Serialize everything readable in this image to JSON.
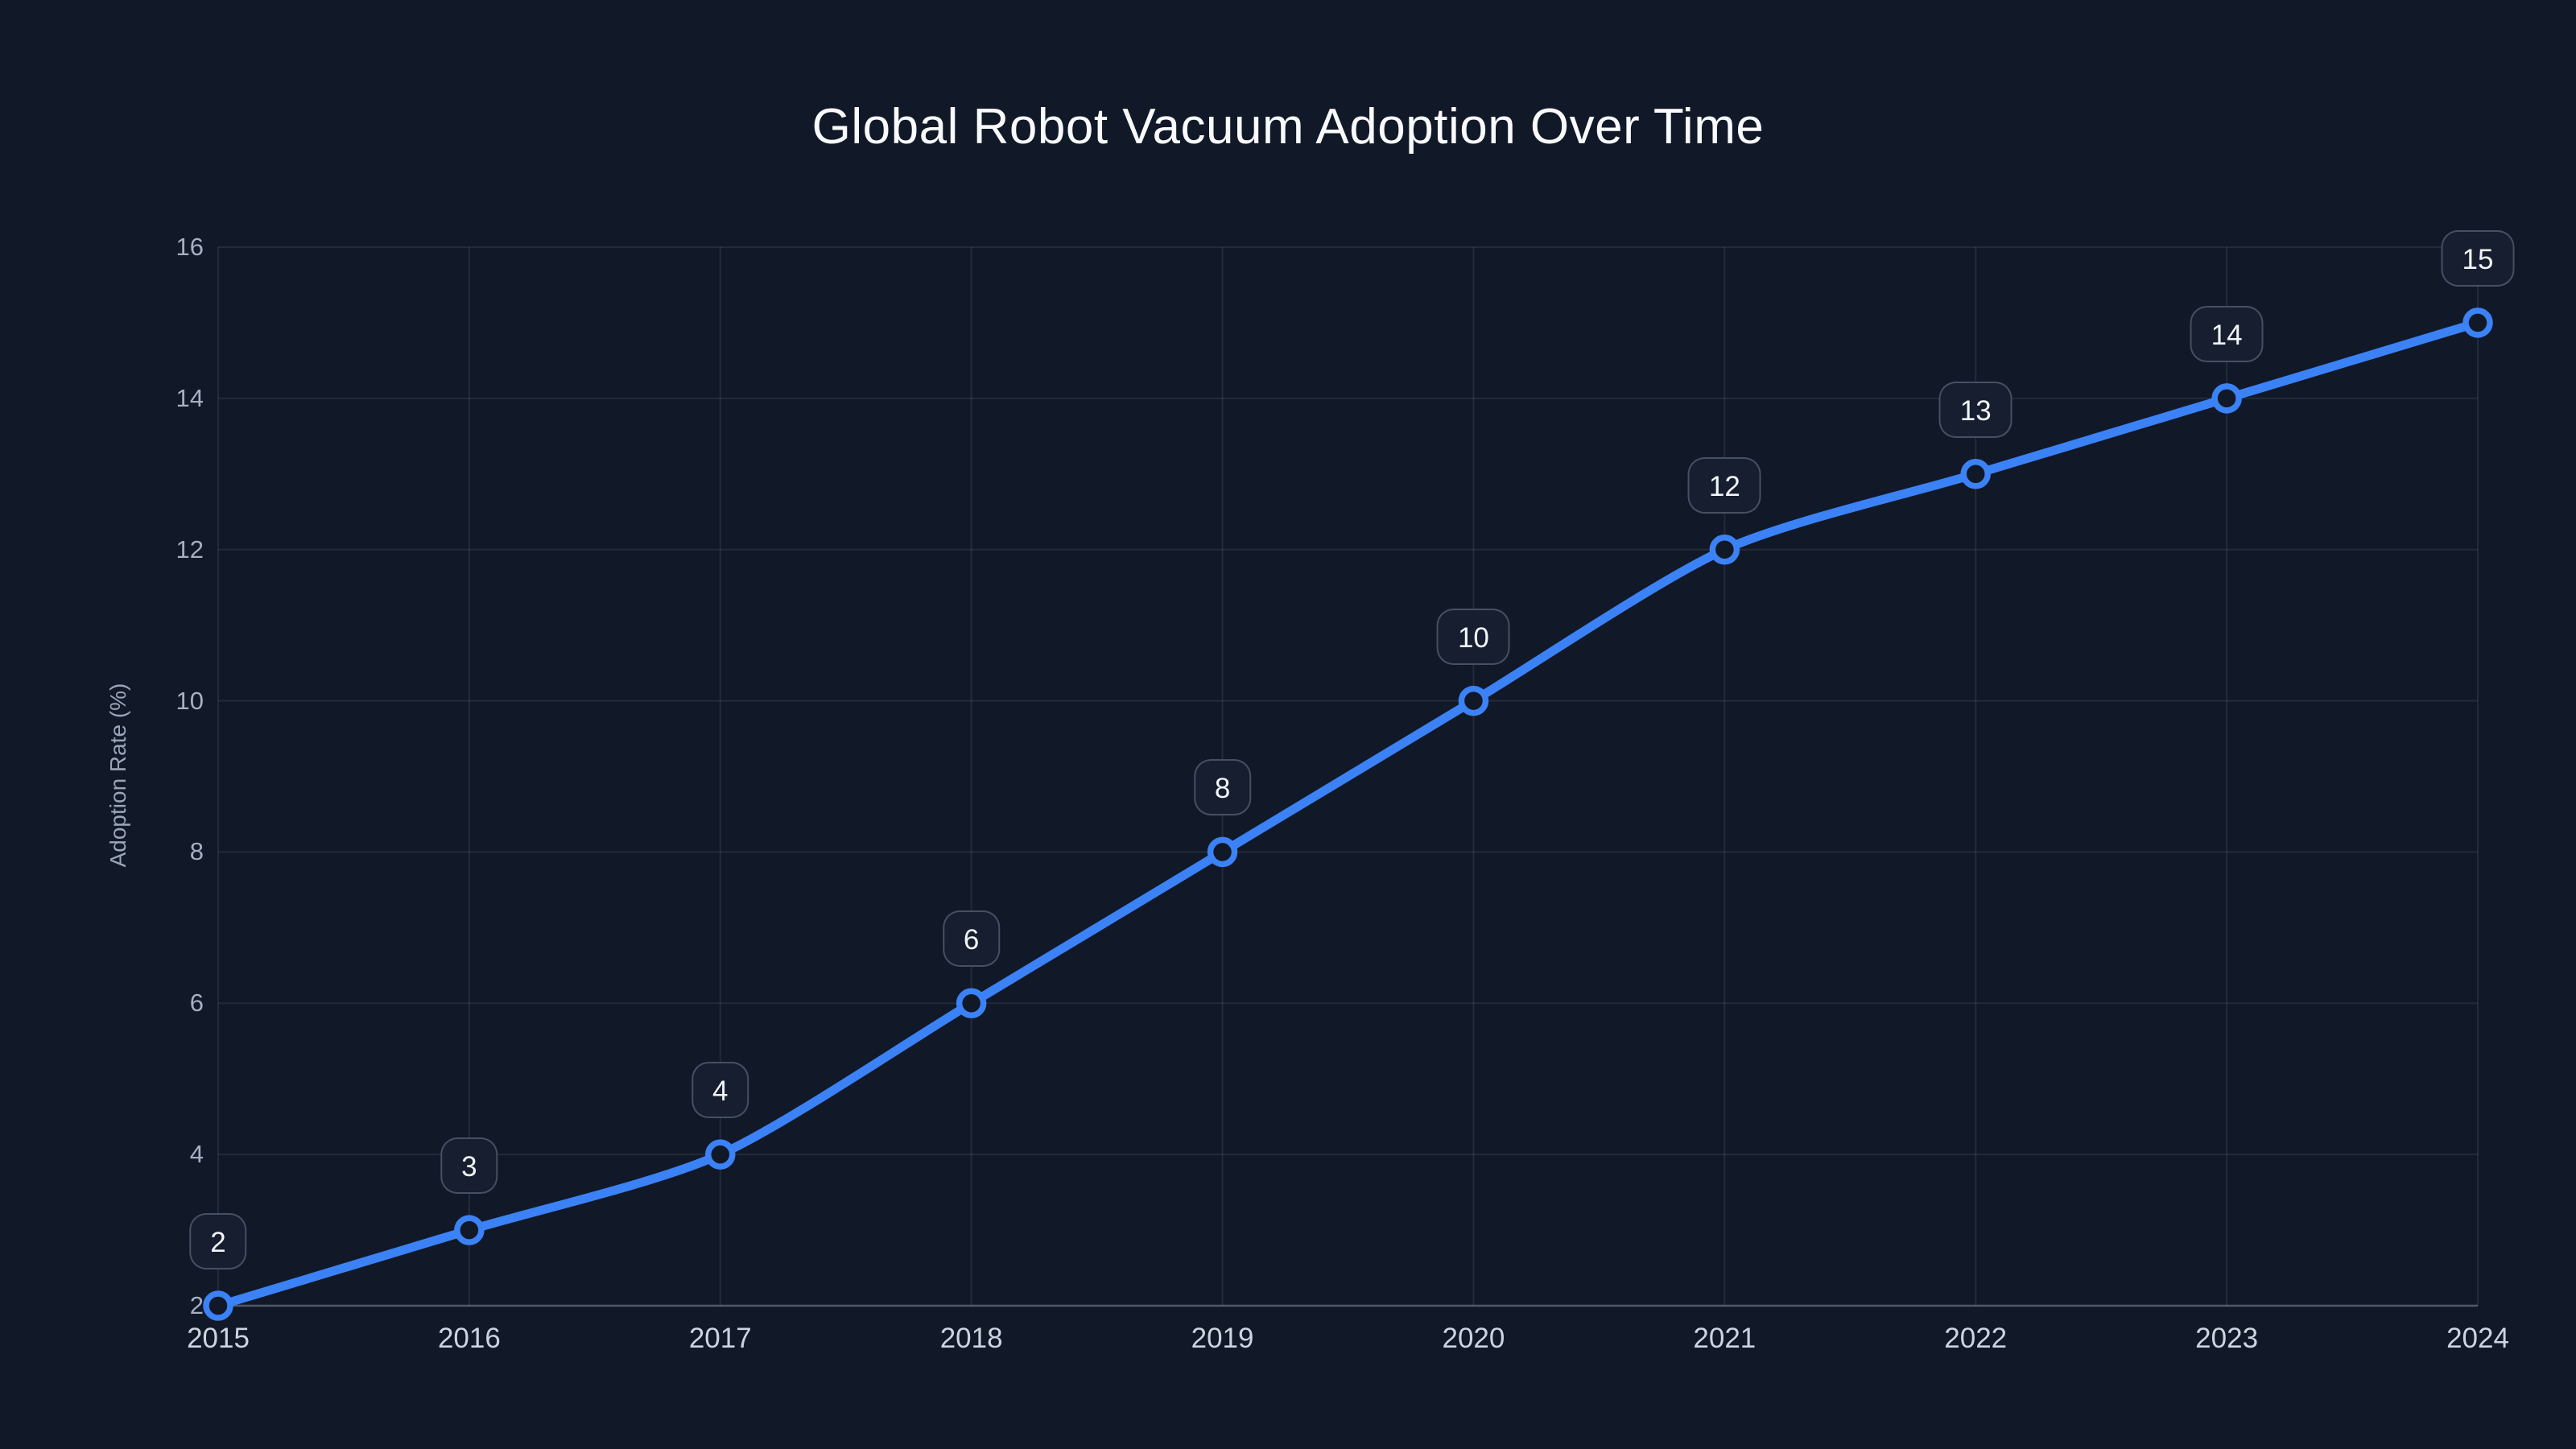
{
  "title": "Global Robot Vacuum Adoption Over Time",
  "colors": {
    "background": "#111827",
    "accent": "#3b82f6",
    "grid": "rgba(148,163,184,0.14)",
    "axis_line": "rgba(148,163,184,0.48)",
    "x_tick_text": "#cbd5e1",
    "y_tick_text": "#a6b0c3",
    "label_chip_bg": "#161e2f",
    "label_chip_border": "rgba(148,163,184,0.38)",
    "label_chip_text": "#f1f5f9"
  },
  "chart_data": {
    "type": "line",
    "title": "Global Robot Vacuum Adoption Over Time",
    "x": [
      2015,
      2016,
      2017,
      2018,
      2019,
      2020,
      2021,
      2022,
      2023,
      2024
    ],
    "series": [
      {
        "name": "Adoption Rate (%)",
        "values": [
          2,
          3,
          4,
          6,
          8,
          10,
          12,
          13,
          14,
          15
        ]
      }
    ],
    "xlabel": "",
    "ylabel": "Adoption Rate (%)",
    "ylim": [
      2,
      16
    ],
    "yticks": [
      2,
      4,
      6,
      8,
      10,
      12,
      14,
      16
    ],
    "grid": true,
    "legend": false,
    "point_labels": true,
    "smoothing": true
  }
}
